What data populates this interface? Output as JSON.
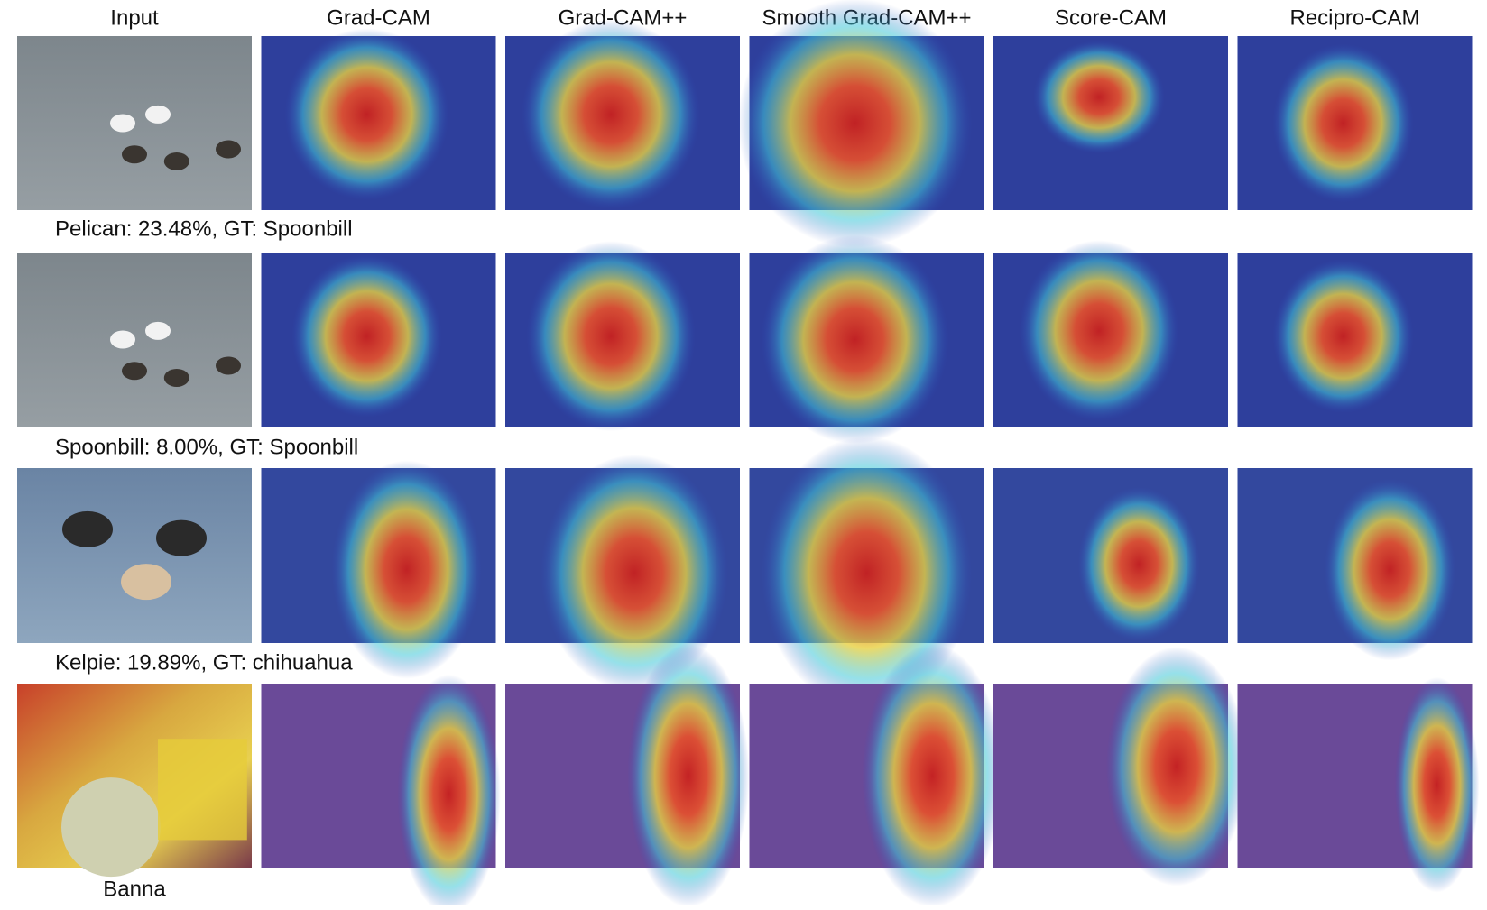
{
  "columns": [
    "Input",
    "Grad-CAM",
    "Grad-CAM++",
    "Smooth Grad-CAM++",
    "Score-CAM",
    "Recipro-CAM"
  ],
  "rows": [
    {
      "caption": "Pelican: 23.48%, GT: Spoonbill"
    },
    {
      "caption": "Spoonbill: 8.00%, GT: Spoonbill"
    },
    {
      "caption": "Kelpie: 19.89%, GT: chihuahua"
    },
    {
      "caption": "Banna"
    }
  ]
}
